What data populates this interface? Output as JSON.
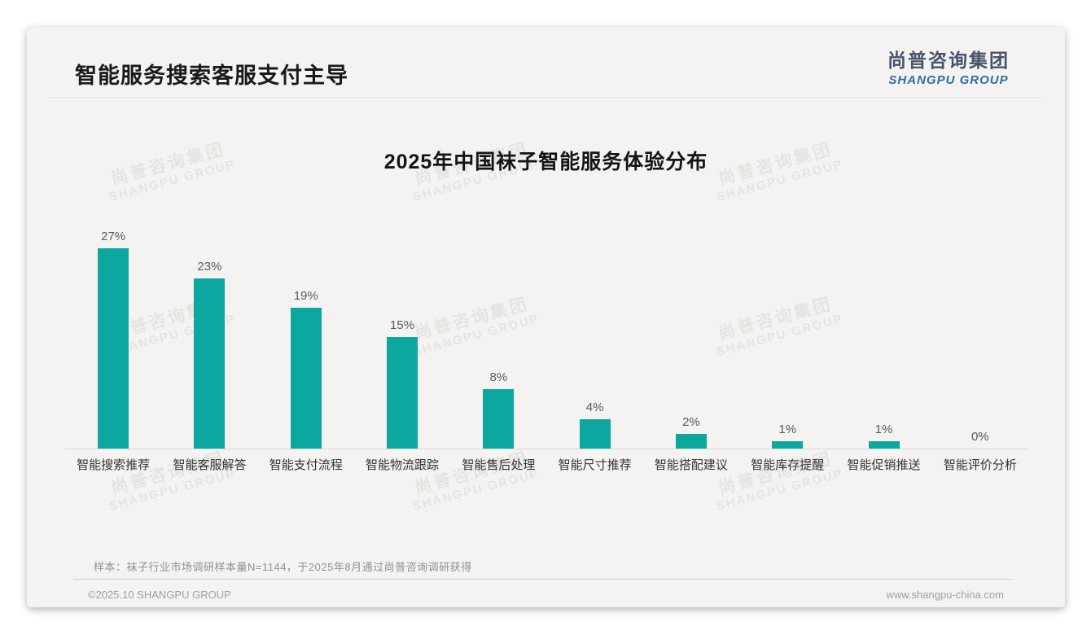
{
  "page": {
    "title": "智能服务搜索客服支付主导",
    "logo": {
      "cn": "尚普咨询集团",
      "en": "SHANGPU GROUP"
    },
    "watermark": {
      "line1": "尚普咨询集团",
      "line2": "SHANGPU GROUP"
    },
    "note": "样本：袜子行业市场调研样本量N=1144，于2025年8月通过尚普咨询调研获得",
    "footer": {
      "left": "©2025.10 SHANGPU GROUP",
      "right": "www.shangpu-china.com"
    }
  },
  "chart_data": {
    "type": "bar",
    "title": "2025年中国袜子智能服务体验分布",
    "categories": [
      "智能搜索推荐",
      "智能客服解答",
      "智能支付流程",
      "智能物流跟踪",
      "智能售后处理",
      "智能尺寸推荐",
      "智能搭配建议",
      "智能库存提醒",
      "智能促销推送",
      "智能评价分析"
    ],
    "values": [
      27,
      23,
      19,
      15,
      8,
      4,
      2,
      1,
      1,
      0
    ],
    "value_labels": [
      "27%",
      "23%",
      "19%",
      "15%",
      "8%",
      "4%",
      "2%",
      "1%",
      "1%",
      "0%"
    ],
    "unit": "%",
    "bar_color": "#0CA8A0",
    "xlabel": "",
    "ylabel": "",
    "ylim": [
      0,
      30
    ],
    "grid": false,
    "legend": null
  }
}
